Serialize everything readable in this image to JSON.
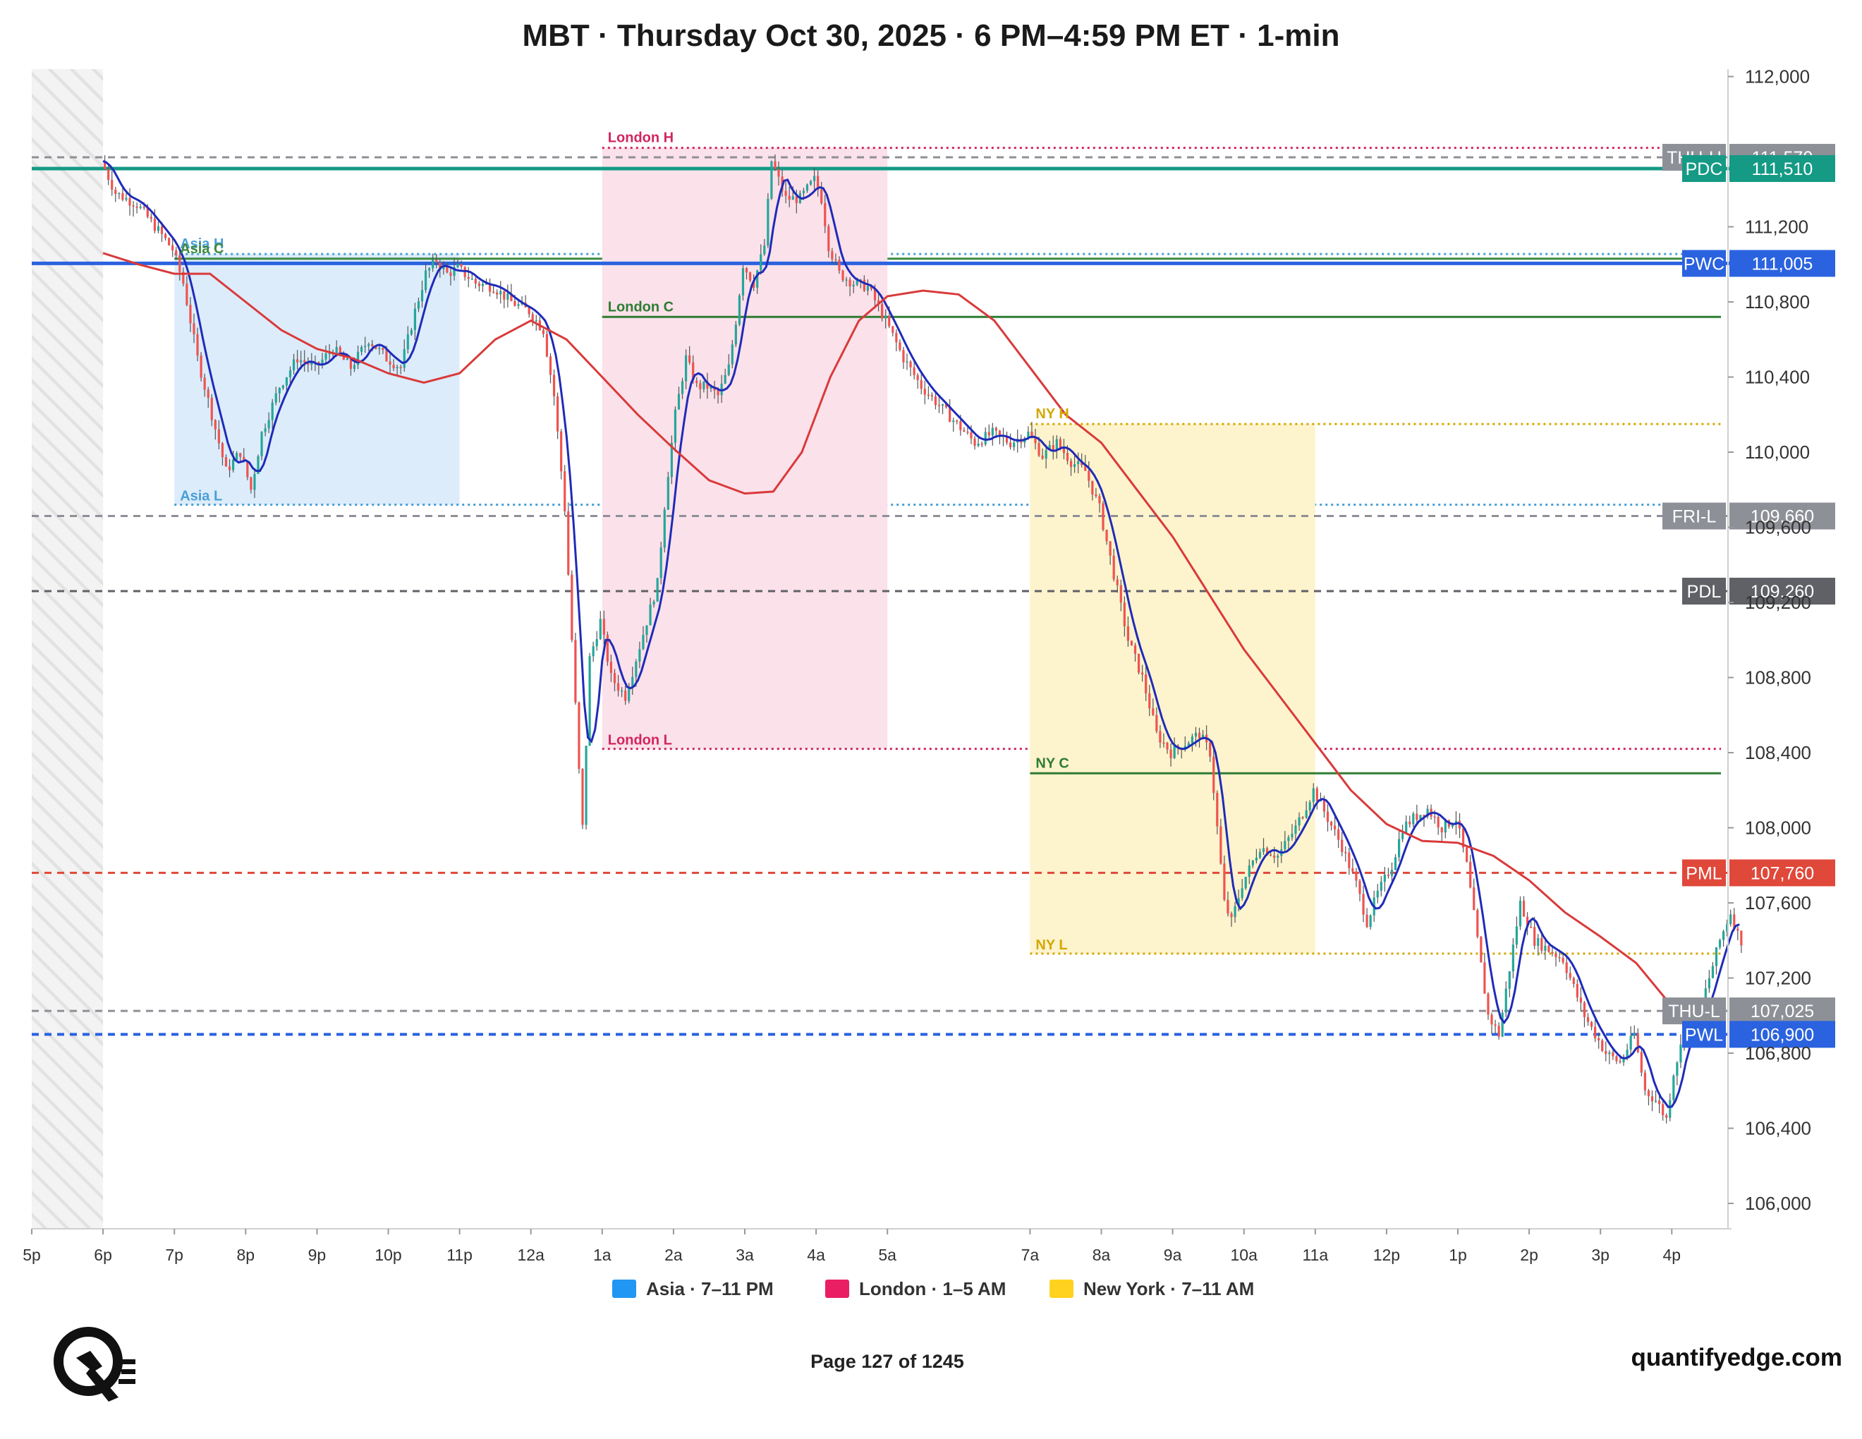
{
  "page": {
    "title": "MBT · Thursday Oct 30, 2025 · 6 PM–4:59 PM ET · 1-min",
    "page_number": "Page 127 of 1245",
    "site": "quantifyedge.com",
    "logo_icon": "quantifyedge-q-logo-icon"
  },
  "chart_data": {
    "type": "candlestick",
    "title": "MBT · Thursday Oct 30, 2025 · 6 PM–4:59 PM ET · 1-min",
    "xlabel": "",
    "ylabel": "",
    "x_range_hours": [
      17,
      40.98
    ],
    "ylim": [
      105850,
      112050
    ],
    "y_ticks": [
      106000,
      106400,
      106800,
      107200,
      107600,
      108000,
      108400,
      108800,
      109200,
      109600,
      110000,
      110400,
      110800,
      111200,
      112000
    ],
    "y_tick_labels": [
      "106,000",
      "106,400",
      "106,800",
      "107,200",
      "107,600",
      "108,000",
      "108,400",
      "108,800",
      "109,200",
      "109,600",
      "110,000",
      "110,400",
      "110,800",
      "111,200",
      "112,000"
    ],
    "x_ticks": [
      {
        "h": 17,
        "label": "5p"
      },
      {
        "h": 18,
        "label": "6p"
      },
      {
        "h": 19,
        "label": "7p"
      },
      {
        "h": 20,
        "label": "8p"
      },
      {
        "h": 21,
        "label": "9p"
      },
      {
        "h": 22,
        "label": "10p"
      },
      {
        "h": 23,
        "label": "11p"
      },
      {
        "h": 24,
        "label": "12a"
      },
      {
        "h": 25,
        "label": "1a"
      },
      {
        "h": 26,
        "label": "2a"
      },
      {
        "h": 27,
        "label": "3a"
      },
      {
        "h": 28,
        "label": "4a"
      },
      {
        "h": 29,
        "label": "5a"
      },
      {
        "h": 31,
        "label": "7a"
      },
      {
        "h": 32,
        "label": "8a"
      },
      {
        "h": 33,
        "label": "9a"
      },
      {
        "h": 34,
        "label": "10a"
      },
      {
        "h": 35,
        "label": "11a"
      },
      {
        "h": 36,
        "label": "12p"
      },
      {
        "h": 37,
        "label": "1p"
      },
      {
        "h": 38,
        "label": "2p"
      },
      {
        "h": 39,
        "label": "3p"
      },
      {
        "h": 40,
        "label": "4p"
      }
    ],
    "closed_period": {
      "start": 17,
      "end": 18
    },
    "sessions": [
      {
        "name": "Asia",
        "legend": "Asia · 7–11 PM",
        "color": "#2196f3",
        "fill": "#dcecfb",
        "start": 19,
        "end": 23,
        "high": 111055,
        "low": 109720,
        "close": 111030,
        "high_label": "Asia H",
        "low_label": "Asia L",
        "close_label": "Asia C",
        "label_color": "#4a9fd6",
        "close_color": "#3f8a3f"
      },
      {
        "name": "London",
        "legend": "London · 1–5 AM",
        "color": "#e91e63",
        "fill": "#fbe1ea",
        "start": 25,
        "end": 29,
        "high": 111620,
        "low": 108420,
        "close": 110720,
        "high_label": "London H",
        "low_label": "London L",
        "close_label": "London C",
        "label_color": "#d0265e",
        "close_color": "#2e7d32"
      },
      {
        "name": "New York",
        "legend": "New York · 7–11 AM",
        "color": "#ffd21f",
        "fill": "#fdf3cd",
        "start": 31,
        "end": 35,
        "high": 110150,
        "low": 107330,
        "close": 108290,
        "high_label": "NY H",
        "low_label": "NY L",
        "close_label": "NY C",
        "label_color": "#d4a800",
        "close_color": "#2e7d32"
      }
    ],
    "levels": [
      {
        "name": "THU-H",
        "value": 111570,
        "value_label": "111,570",
        "color": "#8e9097",
        "style": "dashed",
        "width": 3
      },
      {
        "name": "PDC",
        "value": 111510,
        "value_label": "111,510",
        "color": "#149a85",
        "style": "solid",
        "width": 5
      },
      {
        "name": "PWC",
        "value": 111005,
        "value_label": "111,005",
        "color": "#2a62e0",
        "style": "solid",
        "width": 5
      },
      {
        "name": "FRI-L",
        "value": 109660,
        "value_label": "109,660",
        "color": "#8e9097",
        "style": "dashed",
        "width": 3
      },
      {
        "name": "PDL",
        "value": 109260,
        "value_label": "109,260",
        "color": "#5f6166",
        "style": "dashed",
        "width": 3
      },
      {
        "name": "PML",
        "value": 107760,
        "value_label": "107,760",
        "color": "#e0483a",
        "style": "dashed",
        "width": 3
      },
      {
        "name": "THU-L",
        "value": 107025,
        "value_label": "107,025",
        "color": "#8e9097",
        "style": "dashed",
        "width": 3
      },
      {
        "name": "PWL",
        "value": 106900,
        "value_label": "106,900",
        "color": "#2a62e0",
        "style": "dashed",
        "width": 4
      }
    ],
    "price_path": [
      [
        18.0,
        111550
      ],
      [
        18.2,
        111380
      ],
      [
        18.5,
        111320
      ],
      [
        18.8,
        111180
      ],
      [
        19.0,
        111080
      ],
      [
        19.15,
        110900
      ],
      [
        19.35,
        110500
      ],
      [
        19.55,
        110200
      ],
      [
        19.75,
        109900
      ],
      [
        19.95,
        110000
      ],
      [
        20.1,
        109800
      ],
      [
        20.25,
        110100
      ],
      [
        20.5,
        110350
      ],
      [
        20.75,
        110500
      ],
      [
        21.0,
        110450
      ],
      [
        21.25,
        110550
      ],
      [
        21.5,
        110450
      ],
      [
        21.75,
        110600
      ],
      [
        22.0,
        110500
      ],
      [
        22.2,
        110450
      ],
      [
        22.4,
        110750
      ],
      [
        22.55,
        110950
      ],
      [
        22.7,
        111020
      ],
      [
        22.85,
        110950
      ],
      [
        23.0,
        110980
      ],
      [
        23.25,
        110900
      ],
      [
        23.5,
        110880
      ],
      [
        23.75,
        110800
      ],
      [
        24.0,
        110750
      ],
      [
        24.2,
        110650
      ],
      [
        24.35,
        110300
      ],
      [
        24.5,
        109700
      ],
      [
        24.6,
        109000
      ],
      [
        24.7,
        108300
      ],
      [
        24.75,
        108000
      ],
      [
        24.85,
        108900
      ],
      [
        25.0,
        109100
      ],
      [
        25.15,
        108800
      ],
      [
        25.35,
        108700
      ],
      [
        25.5,
        108900
      ],
      [
        25.65,
        109100
      ],
      [
        25.8,
        109300
      ],
      [
        25.92,
        109800
      ],
      [
        26.05,
        110200
      ],
      [
        26.2,
        110500
      ],
      [
        26.35,
        110350
      ],
      [
        26.5,
        110350
      ],
      [
        26.65,
        110300
      ],
      [
        26.8,
        110450
      ],
      [
        26.9,
        110700
      ],
      [
        27.0,
        111000
      ],
      [
        27.15,
        110900
      ],
      [
        27.3,
        111100
      ],
      [
        27.4,
        111550
      ],
      [
        27.5,
        111450
      ],
      [
        27.6,
        111350
      ],
      [
        27.8,
        111350
      ],
      [
        28.0,
        111450
      ],
      [
        28.1,
        111350
      ],
      [
        28.2,
        111100
      ],
      [
        28.35,
        110950
      ],
      [
        28.55,
        110900
      ],
      [
        28.75,
        110880
      ],
      [
        29.0,
        110700
      ],
      [
        29.25,
        110500
      ],
      [
        29.5,
        110350
      ],
      [
        29.75,
        110250
      ],
      [
        30.0,
        110150
      ],
      [
        30.25,
        110050
      ],
      [
        30.5,
        110100
      ],
      [
        30.75,
        110050
      ],
      [
        31.0,
        110100
      ],
      [
        31.2,
        109980
      ],
      [
        31.4,
        110050
      ],
      [
        31.6,
        109950
      ],
      [
        31.8,
        109900
      ],
      [
        32.0,
        109700
      ],
      [
        32.2,
        109350
      ],
      [
        32.4,
        109000
      ],
      [
        32.6,
        108800
      ],
      [
        32.8,
        108500
      ],
      [
        33.0,
        108400
      ],
      [
        33.2,
        108450
      ],
      [
        33.4,
        108500
      ],
      [
        33.55,
        108400
      ],
      [
        33.65,
        108000
      ],
      [
        33.75,
        107600
      ],
      [
        33.85,
        107500
      ],
      [
        34.0,
        107700
      ],
      [
        34.25,
        107900
      ],
      [
        34.5,
        107850
      ],
      [
        34.75,
        108000
      ],
      [
        35.0,
        108200
      ],
      [
        35.2,
        108050
      ],
      [
        35.4,
        107900
      ],
      [
        35.6,
        107700
      ],
      [
        35.75,
        107500
      ],
      [
        35.9,
        107650
      ],
      [
        36.1,
        107800
      ],
      [
        36.25,
        108000
      ],
      [
        36.4,
        108050
      ],
      [
        36.6,
        108100
      ],
      [
        36.8,
        108000
      ],
      [
        37.0,
        108050
      ],
      [
        37.15,
        107800
      ],
      [
        37.3,
        107400
      ],
      [
        37.45,
        107000
      ],
      [
        37.6,
        106900
      ],
      [
        37.75,
        107250
      ],
      [
        37.9,
        107600
      ],
      [
        38.1,
        107400
      ],
      [
        38.3,
        107350
      ],
      [
        38.5,
        107300
      ],
      [
        38.65,
        107150
      ],
      [
        38.8,
        107000
      ],
      [
        38.95,
        106900
      ],
      [
        39.1,
        106800
      ],
      [
        39.3,
        106750
      ],
      [
        39.5,
        106900
      ],
      [
        39.65,
        106600
      ],
      [
        39.8,
        106550
      ],
      [
        39.95,
        106450
      ],
      [
        40.05,
        106700
      ],
      [
        40.2,
        106900
      ],
      [
        40.4,
        107000
      ],
      [
        40.55,
        107200
      ],
      [
        40.7,
        107400
      ],
      [
        40.85,
        107550
      ],
      [
        40.98,
        107400
      ]
    ],
    "fast_ma": {
      "name": "fast MA",
      "color": "#1f2bb8"
    },
    "slow_ma": {
      "name": "slow MA",
      "color": "#d93a3a",
      "points": [
        [
          18.0,
          111060
        ],
        [
          18.5,
          111000
        ],
        [
          19.0,
          110950
        ],
        [
          19.5,
          110950
        ],
        [
          20.0,
          110800
        ],
        [
          20.5,
          110650
        ],
        [
          21.0,
          110550
        ],
        [
          21.5,
          110500
        ],
        [
          22.0,
          110420
        ],
        [
          22.5,
          110370
        ],
        [
          23.0,
          110420
        ],
        [
          23.5,
          110600
        ],
        [
          24.0,
          110700
        ],
        [
          24.5,
          110600
        ],
        [
          25.0,
          110400
        ],
        [
          25.5,
          110200
        ],
        [
          26.0,
          110020
        ],
        [
          26.5,
          109850
        ],
        [
          27.0,
          109780
        ],
        [
          27.4,
          109790
        ],
        [
          27.8,
          110000
        ],
        [
          28.2,
          110400
        ],
        [
          28.6,
          110700
        ],
        [
          29.0,
          110830
        ],
        [
          29.5,
          110860
        ],
        [
          30.0,
          110840
        ],
        [
          30.5,
          110700
        ],
        [
          31.0,
          110450
        ],
        [
          31.5,
          110200
        ],
        [
          32.0,
          110050
        ],
        [
          32.5,
          109800
        ],
        [
          33.0,
          109550
        ],
        [
          33.5,
          109250
        ],
        [
          34.0,
          108950
        ],
        [
          34.5,
          108700
        ],
        [
          35.0,
          108450
        ],
        [
          35.5,
          108200
        ],
        [
          36.0,
          108020
        ],
        [
          36.5,
          107930
        ],
        [
          37.0,
          107920
        ],
        [
          37.5,
          107850
        ],
        [
          38.0,
          107720
        ],
        [
          38.5,
          107550
        ],
        [
          39.0,
          107420
        ],
        [
          39.5,
          107280
        ],
        [
          40.0,
          107050
        ],
        [
          40.3,
          107060
        ]
      ]
    },
    "legend": [
      {
        "label": "Asia · 7–11 PM",
        "color": "#2196f3"
      },
      {
        "label": "London · 1–5 AM",
        "color": "#e91e63"
      },
      {
        "label": "New York · 7–11 AM",
        "color": "#ffd21f"
      }
    ],
    "legend_position": "bottom-center",
    "grid": false
  }
}
